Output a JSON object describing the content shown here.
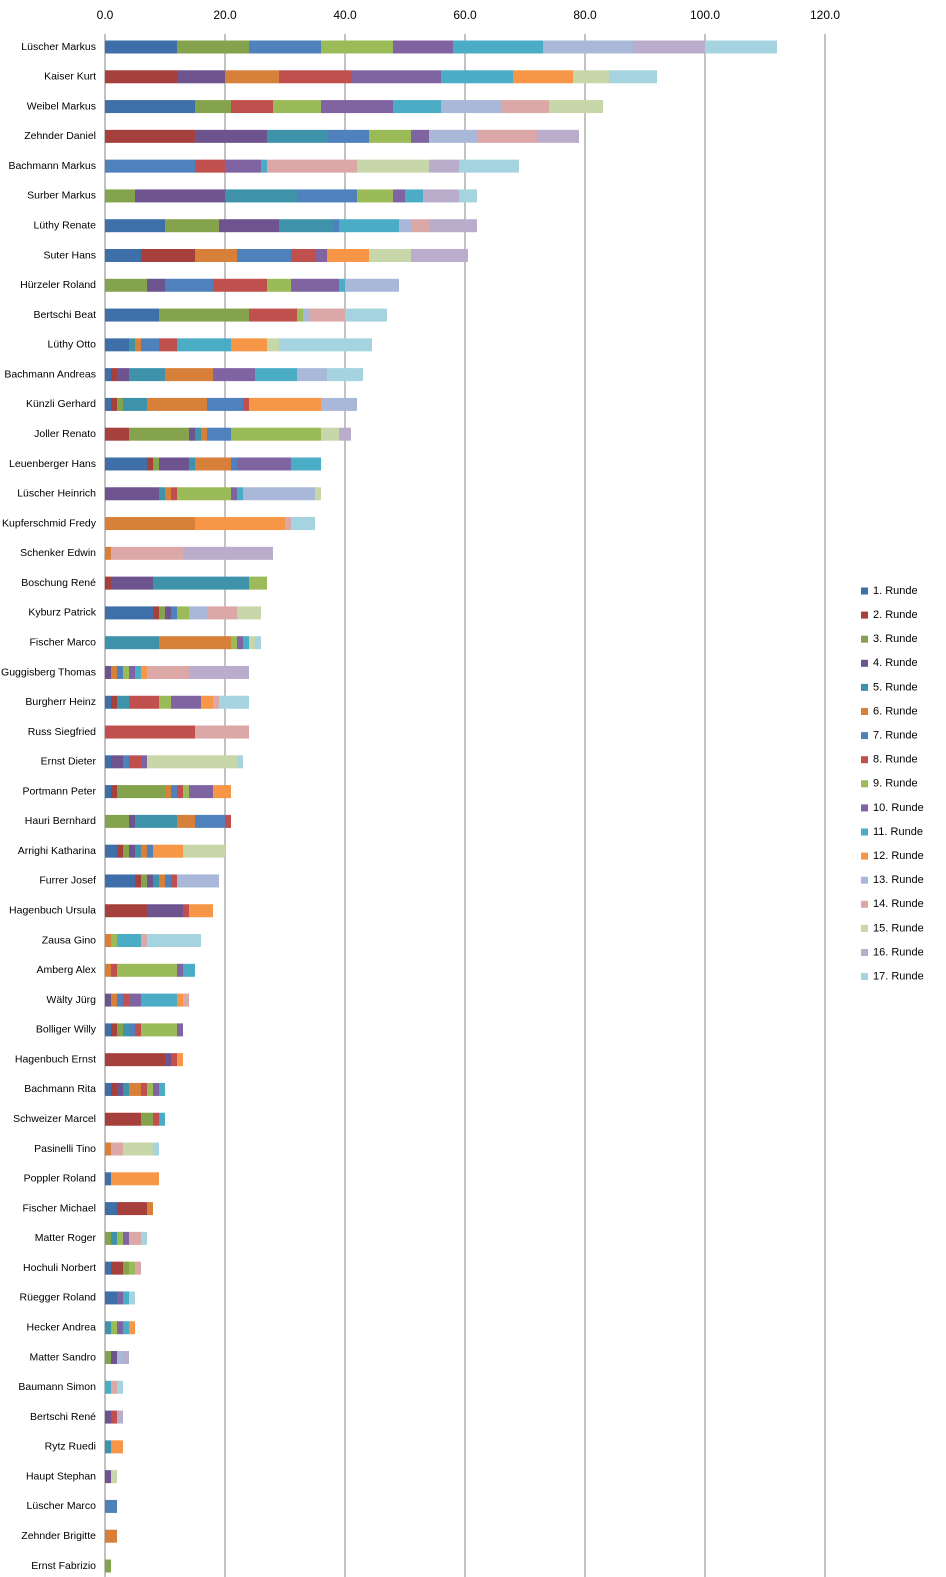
{
  "chart_data": {
    "type": "stacked-bar-horizontal",
    "categories": [
      "Lüscher Markus",
      "Kaiser Kurt",
      "Weibel Markus",
      "Zehnder Daniel",
      "Bachmann Markus",
      "Surber Markus",
      "Lüthy Renate",
      "Suter Hans",
      "Hürzeler Roland",
      "Bertschi Beat",
      "Lüthy Otto",
      "Bachmann Andreas",
      "Künzli Gerhard",
      "Joller Renato",
      "Leuenberger Hans",
      "Lüscher Heinrich",
      "Kupferschmid Fredy",
      "Schenker Edwin",
      "Boschung René",
      "Kyburz Patrick",
      "Fischer Marco",
      "Guggisberg Thomas",
      "Burgherr Heinz",
      "Russ Siegfried",
      "Ernst Dieter",
      "Portmann Peter",
      "Hauri Bernhard",
      "Arrighi Katharina",
      "Furrer Josef",
      "Hagenbuch Ursula",
      "Zausa Gino",
      "Amberg Alex",
      "Wälty Jürg",
      "Bolliger Willy",
      "Hagenbuch Ernst",
      "Bachmann Rita",
      "Schweizer Marcel",
      "Pasinelli Tino",
      "Poppler Roland",
      "Fischer Michael",
      "Matter Roger",
      "Hochuli Norbert",
      "Rüegger Roland",
      "Hecker Andrea",
      "Matter Sandro",
      "Baumann Simon",
      "Bertschi René",
      "Rytz Ruedi",
      "Haupt Stephan",
      "Lüscher Marco",
      "Zehnder Brigitte",
      "Ernst Fabrizio"
    ],
    "series": [
      {
        "name": "1. Runde",
        "color": "#3f6fa8",
        "values": [
          12,
          0,
          15,
          0,
          0,
          0,
          10,
          6,
          0,
          9,
          4,
          1,
          1,
          0,
          7,
          0,
          0,
          0,
          0,
          8,
          0,
          0,
          1,
          0,
          1,
          1,
          0,
          2,
          5,
          0,
          0,
          0,
          0,
          1,
          0,
          1,
          0,
          0,
          1,
          2,
          0,
          1,
          2,
          0,
          0,
          0,
          0,
          0,
          0,
          0,
          0,
          0
        ]
      },
      {
        "name": "2. Runde",
        "color": "#a5403c",
        "values": [
          0,
          12,
          0,
          15,
          0,
          0,
          0,
          9,
          0,
          0,
          0,
          1,
          1,
          4,
          1,
          0,
          0,
          0,
          1,
          1,
          0,
          0,
          1,
          0,
          0,
          1,
          0,
          1,
          1,
          7,
          0,
          0,
          0,
          1,
          10,
          1,
          6,
          0,
          0,
          5,
          0,
          2,
          0,
          0,
          0,
          0,
          0,
          0,
          0,
          0,
          0,
          0
        ]
      },
      {
        "name": "3. Runde",
        "color": "#85a34d",
        "values": [
          12,
          0,
          6,
          0,
          0,
          5,
          9,
          0,
          7,
          15,
          0,
          0,
          1,
          10,
          1,
          0,
          0,
          0,
          0,
          1,
          0,
          0,
          0,
          0,
          0,
          8,
          4,
          1,
          1,
          0,
          0,
          0,
          0,
          1,
          0,
          0,
          2,
          0,
          0,
          0,
          1,
          1,
          0,
          0,
          1,
          0,
          0,
          0,
          0,
          0,
          0,
          1
        ]
      },
      {
        "name": "4. Runde",
        "color": "#6e548f",
        "values": [
          0,
          8,
          0,
          12,
          0,
          15,
          10,
          0,
          3,
          0,
          0,
          2,
          0,
          1,
          5,
          9,
          0,
          0,
          7,
          1,
          0,
          1,
          0,
          0,
          2,
          0,
          1,
          1,
          1,
          6,
          0,
          0,
          1,
          0,
          1,
          1,
          0,
          0,
          0,
          0,
          0,
          0,
          0,
          0,
          1,
          0,
          1,
          0,
          1,
          0,
          0,
          0
        ]
      },
      {
        "name": "5. Runde",
        "color": "#3e93aa",
        "values": [
          0,
          0,
          0,
          10,
          0,
          12,
          9,
          0,
          0,
          0,
          1,
          6,
          4,
          1,
          1,
          1,
          0,
          0,
          16,
          0,
          9,
          0,
          2,
          0,
          0,
          0,
          7,
          1,
          1,
          0,
          0,
          0,
          0,
          1,
          0,
          1,
          0,
          0,
          0,
          0,
          1,
          0,
          0,
          1,
          0,
          0,
          0,
          1,
          0,
          0,
          0,
          0
        ]
      },
      {
        "name": "6. Runde",
        "color": "#d6803a",
        "values": [
          0,
          9,
          0,
          0,
          0,
          0,
          0,
          7,
          0,
          0,
          1,
          8,
          10,
          1,
          6,
          1,
          15,
          1,
          0,
          0,
          12,
          1,
          0,
          0,
          0,
          1,
          3,
          1,
          1,
          0,
          1,
          1,
          1,
          0,
          0,
          2,
          0,
          1,
          0,
          1,
          0,
          0,
          0,
          0,
          0,
          0,
          0,
          0,
          0,
          0,
          2,
          0
        ]
      },
      {
        "name": "7. Runde",
        "color": "#4f81bd",
        "values": [
          12,
          0,
          0,
          7,
          15,
          10,
          1,
          9,
          8,
          0,
          3,
          0,
          6,
          4,
          1,
          0,
          0,
          0,
          0,
          1,
          0,
          1,
          0,
          0,
          1,
          1,
          5,
          1,
          1,
          0,
          0,
          0,
          1,
          1,
          0,
          0,
          0,
          0,
          0,
          0,
          0,
          0,
          0,
          0,
          0,
          0,
          0,
          0,
          0,
          2,
          0,
          0
        ]
      },
      {
        "name": "8. Runde",
        "color": "#c0504d",
        "values": [
          0,
          12,
          7,
          0,
          5,
          0,
          0,
          4,
          9,
          8,
          3,
          0,
          1,
          0,
          0,
          1,
          0,
          0,
          0,
          0,
          0,
          0,
          5,
          15,
          2,
          1,
          1,
          0,
          1,
          1,
          0,
          1,
          1,
          1,
          1,
          1,
          1,
          0,
          0,
          0,
          0,
          0,
          0,
          0,
          0,
          0,
          1,
          0,
          0,
          0,
          0,
          0
        ]
      },
      {
        "name": "9. Runde",
        "color": "#9bbb59",
        "values": [
          12,
          0,
          8,
          7,
          0,
          6,
          0,
          0,
          4,
          1,
          0,
          0,
          0,
          15,
          0,
          9,
          0,
          0,
          3,
          2,
          1,
          1,
          2,
          0,
          0,
          1,
          0,
          0,
          0,
          0,
          1,
          10,
          0,
          6,
          0,
          1,
          0,
          0,
          0,
          0,
          1,
          1,
          0,
          1,
          0,
          0,
          0,
          0,
          0,
          0,
          0,
          0
        ]
      },
      {
        "name": "10. Runde",
        "color": "#8064a2",
        "values": [
          10,
          15,
          12,
          3,
          6,
          2,
          0,
          2,
          8,
          0,
          0,
          7,
          0,
          0,
          9,
          1,
          0,
          0,
          0,
          0,
          1,
          1,
          5,
          0,
          1,
          4,
          0,
          0,
          0,
          0,
          0,
          1,
          2,
          1,
          0,
          1,
          0,
          0,
          0,
          0,
          1,
          0,
          1,
          1,
          0,
          0,
          0,
          0,
          0,
          0,
          0,
          0
        ]
      },
      {
        "name": "11. Runde",
        "color": "#4bacc6",
        "values": [
          15,
          12,
          8,
          0,
          1,
          3,
          10,
          0,
          1,
          0,
          9,
          7,
          0,
          0,
          5,
          1,
          0,
          0,
          0,
          0,
          1,
          1,
          0,
          0,
          0,
          0,
          0,
          0,
          0,
          0,
          4,
          2,
          6,
          0,
          0,
          1,
          1,
          0,
          0,
          0,
          0,
          0,
          1,
          1,
          0,
          1,
          0,
          0,
          0,
          0,
          0,
          0
        ]
      },
      {
        "name": "12. Runde",
        "color": "#f79646",
        "values": [
          0,
          10,
          0,
          0,
          0,
          0,
          0,
          7,
          0,
          0,
          6,
          0,
          12,
          0,
          0,
          0,
          15,
          0,
          0,
          0,
          0,
          1,
          2,
          0,
          0,
          3,
          0,
          5,
          0,
          4,
          0,
          0,
          1,
          0,
          1,
          0,
          0,
          0,
          8,
          0,
          0,
          0,
          0,
          1,
          0,
          0,
          0,
          2,
          0,
          0,
          0,
          0
        ]
      },
      {
        "name": "13. Runde",
        "color": "#a9b8d8",
        "values": [
          15,
          0,
          10,
          8,
          0,
          0,
          2,
          0,
          9,
          1,
          0,
          5,
          6,
          0,
          0,
          12,
          0,
          0,
          0,
          3,
          0,
          0,
          0,
          0,
          0,
          0,
          0,
          0,
          7,
          0,
          0,
          0,
          0,
          0,
          0,
          0,
          0,
          0,
          0,
          0,
          0,
          0,
          0,
          0,
          1,
          0,
          0,
          0,
          0,
          0,
          0,
          0
        ]
      },
      {
        "name": "14. Runde",
        "color": "#dba8a7",
        "values": [
          0,
          0,
          8,
          10,
          15,
          0,
          3,
          0,
          0,
          6,
          0,
          0,
          0,
          0,
          0,
          0,
          1,
          12,
          0,
          5,
          0,
          7,
          1,
          9,
          0,
          0,
          0,
          0,
          0,
          0,
          1,
          0,
          1,
          0,
          0,
          0,
          0,
          2,
          0,
          0,
          2,
          1,
          0,
          0,
          0,
          1,
          0,
          0,
          0,
          0,
          0,
          0
        ]
      },
      {
        "name": "15. Runde",
        "color": "#c8d7a9",
        "values": [
          0,
          6,
          9,
          0,
          12,
          0,
          0,
          7,
          0,
          0,
          2,
          0,
          0,
          3,
          0,
          1,
          0,
          0,
          0,
          4,
          1,
          0,
          0,
          0,
          15,
          0,
          0,
          7,
          0,
          0,
          0,
          0,
          0,
          0,
          0,
          0,
          0,
          5,
          0,
          0,
          0,
          0,
          0,
          0,
          0,
          0,
          0,
          0,
          1,
          0,
          0,
          0
        ]
      },
      {
        "name": "16. Runde",
        "color": "#b9adcb",
        "values": [
          12,
          0,
          0,
          7,
          5,
          6,
          8,
          9.5,
          0,
          0,
          0,
          0,
          0,
          2,
          0,
          0,
          0,
          15,
          0,
          0,
          0,
          10,
          0,
          0,
          0,
          0,
          0,
          0,
          0,
          0,
          0,
          0,
          0,
          0,
          0,
          0,
          0,
          0,
          0,
          0,
          0,
          0,
          0,
          0,
          1,
          0,
          1,
          0,
          0,
          0,
          0,
          0
        ]
      },
      {
        "name": "17. Runde",
        "color": "#a5d3e0",
        "values": [
          12,
          8,
          0,
          0,
          10,
          3,
          0,
          0,
          0,
          7,
          15.5,
          6,
          0,
          0,
          0,
          0,
          4,
          0,
          0,
          0,
          1,
          0,
          5,
          0,
          1,
          0,
          0,
          0,
          0,
          0,
          9,
          0,
          0,
          0,
          0,
          0,
          0,
          1,
          0,
          0,
          1,
          0,
          1,
          0,
          0,
          1,
          0,
          0,
          0,
          0,
          0,
          0
        ]
      }
    ],
    "xlim": [
      0,
      120
    ],
    "xticks": [
      {
        "value": 0,
        "label": "0.0"
      },
      {
        "value": 20,
        "label": "20.0"
      },
      {
        "value": 40,
        "label": "40.0"
      },
      {
        "value": 60,
        "label": "60.0"
      },
      {
        "value": 80,
        "label": "80.0"
      },
      {
        "value": 100,
        "label": "100.0"
      },
      {
        "value": 120,
        "label": "120.0"
      }
    ],
    "grid": true,
    "legend": "right"
  }
}
